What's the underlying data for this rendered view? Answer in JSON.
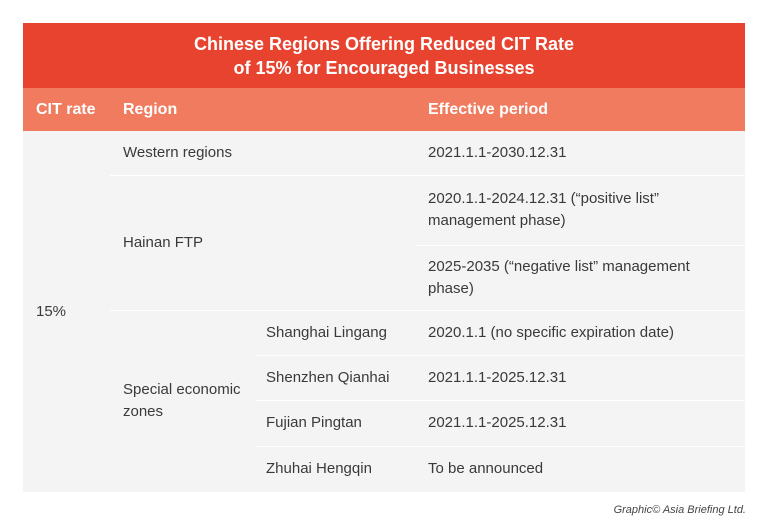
{
  "header": {
    "title": [
      "Chinese Regions Offering Reduced CIT Rate",
      "of 15% for Encouraged Businesses"
    ]
  },
  "table": {
    "columns": {
      "cit_rate": "CIT rate",
      "region": "Region",
      "effective_period": "Effective period"
    },
    "cit_rate": "15%",
    "groups": [
      {
        "region": "Western regions",
        "entries": [
          {
            "period": "2021.1.1-2030.12.31"
          }
        ]
      },
      {
        "region": "Hainan FTP",
        "entries": [
          {
            "period": "2020.1.1-2024.12.31 (“positive list” management phase)"
          },
          {
            "period": "2025-2035 (“negative list” management phase)"
          }
        ]
      },
      {
        "region": "Special economic zones",
        "entries": [
          {
            "zone": "Shanghai Lingang",
            "period": "2020.1.1 (no specific expiration date)"
          },
          {
            "zone": "Shenzhen Qianhai",
            "period": "2021.1.1-2025.12.31"
          },
          {
            "zone": "Fujian Pingtan",
            "period": "2021.1.1-2025.12.31"
          },
          {
            "zone": "Zhuhai Hengqin",
            "period": "To be announced"
          }
        ]
      }
    ]
  },
  "footer": {
    "credit": "Graphic© Asia Briefing Ltd."
  }
}
